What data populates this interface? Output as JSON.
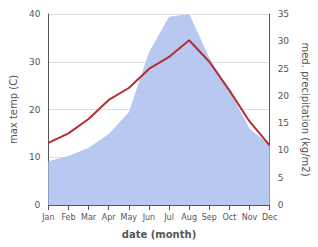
{
  "chart_data": {
    "type": "line",
    "xlabel": "date (month)",
    "ylabel": "max temp (C)",
    "y2label": "med. precipitation (kg/m2)",
    "categories": [
      "Jan",
      "Feb",
      "Mar",
      "Apr",
      "May",
      "Jun",
      "Jul",
      "Aug",
      "Sep",
      "Oct",
      "Nov",
      "Dec"
    ],
    "series": [
      {
        "type": "area",
        "axis": "y2",
        "color": "#b8c8f0",
        "values": [
          8.0,
          9.0,
          10.5,
          13.0,
          17.0,
          28.0,
          34.5,
          35.0,
          27.0,
          21.0,
          14.0,
          11.0
        ]
      },
      {
        "type": "line",
        "color": "#b03030",
        "values": [
          13.0,
          15.0,
          18.0,
          22.0,
          24.5,
          28.5,
          31.0,
          34.5,
          30.0,
          24.0,
          17.5,
          12.5
        ]
      }
    ],
    "ylim": [
      0,
      40
    ],
    "yticks": [
      0,
      10,
      20,
      30,
      40
    ],
    "y2lim": [
      0,
      35
    ],
    "y2ticks": [
      0,
      5,
      10,
      15,
      20,
      25,
      30,
      35
    ],
    "grid": true
  }
}
